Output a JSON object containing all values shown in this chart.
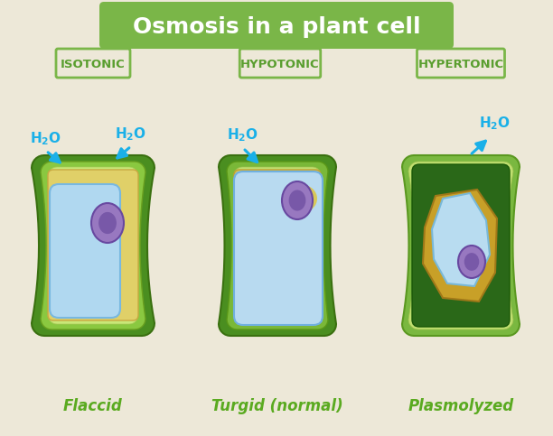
{
  "title": "Osmosis in a plant cell",
  "title_bg": "#7ab648",
  "title_color": "#ffffff",
  "bg_color": "#ede8d8",
  "label_border_color": "#7ab648",
  "label_text_color": "#5a9e2f",
  "labels": [
    "ISOTONIC",
    "HYPOTONIC",
    "HYPERTONIC"
  ],
  "sublabels": [
    "Flaccid",
    "Turgid (normal)",
    "Plasmolyzed"
  ],
  "sublabel_color": "#5aaa20",
  "h2o_color": "#1ab0e8",
  "arrow_color": "#1ab0e8",
  "wall_dark": "#4a8e20",
  "wall_mid": "#7ab840",
  "wall_light": "#c8e880",
  "cytoplasm": "#e8d870",
  "vacuole_fill": "#b8dcf0",
  "vacuole_fill2": "#c8e8f8",
  "vacuole_border": "#78b8d8",
  "nucleus_fill": "#9878c0",
  "nucleus_border": "#6848a0",
  "dark_interior": "#2a6818",
  "gold_cytoplasm": "#d4aa30"
}
